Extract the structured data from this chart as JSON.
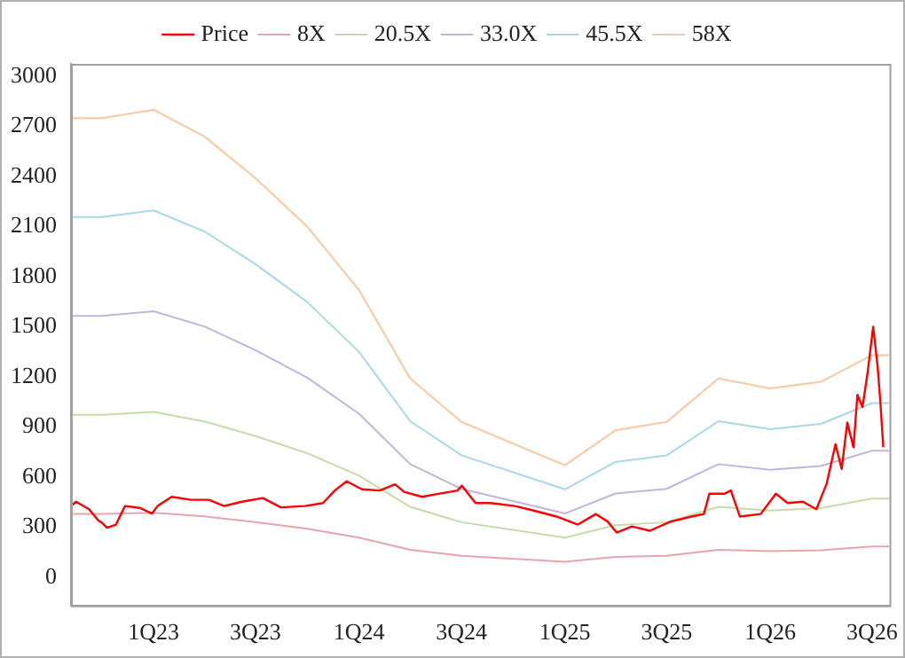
{
  "chart_data": {
    "type": "line",
    "legend": "top",
    "grid": false,
    "xlim": [
      "2022-08-07",
      "2026-08-01"
    ],
    "xticks": [
      {
        "value": "2023-01-01",
        "label": "1Q23"
      },
      {
        "value": "2023-07-01",
        "label": "3Q23"
      },
      {
        "value": "2024-01-01",
        "label": "1Q24"
      },
      {
        "value": "2024-07-01",
        "label": "3Q24"
      },
      {
        "value": "2025-01-01",
        "label": "1Q25"
      },
      {
        "value": "2025-07-01",
        "label": "3Q25"
      },
      {
        "value": "2026-01-01",
        "label": "1Q26"
      },
      {
        "value": "2026-07-01",
        "label": "3Q26"
      }
    ],
    "ylim": [
      -170,
      3075
    ],
    "yticks": [
      0,
      300,
      600,
      900,
      1200,
      1500,
      1800,
      2100,
      2400,
      2700,
      3000
    ],
    "series": [
      {
        "name": "Price",
        "color": "#ff0000",
        "x": [
          "2022-08-07",
          "2022-08-16",
          "2022-09-08",
          "2022-09-24",
          "2022-10-01",
          "2022-10-10",
          "2022-10-26",
          "2022-11-11",
          "2022-12-07",
          "2022-12-29",
          "2023-01-08",
          "2023-02-02",
          "2023-03-08",
          "2023-04-09",
          "2023-05-06",
          "2023-06-07",
          "2023-07-14",
          "2023-08-15",
          "2023-09-27",
          "2023-10-29",
          "2023-11-19",
          "2023-12-10",
          "2024-01-06",
          "2024-02-07",
          "2024-03-05",
          "2024-03-21",
          "2024-04-22",
          "2024-05-23",
          "2024-06-24",
          "2024-07-02",
          "2024-07-26",
          "2024-08-22",
          "2024-10-04",
          "2024-11-05",
          "2024-12-17",
          "2025-01-24",
          "2025-02-25",
          "2025-03-18",
          "2025-04-03",
          "2025-04-30",
          "2025-06-01",
          "2025-07-08",
          "2025-08-14",
          "2025-09-05",
          "2025-09-15",
          "2025-10-12",
          "2025-10-23",
          "2025-11-08",
          "2025-12-15",
          "2026-01-11",
          "2026-02-01",
          "2026-02-28",
          "2026-03-24",
          "2026-04-11",
          "2026-04-27",
          "2026-05-08",
          "2026-05-18",
          "2026-05-29",
          "2026-06-05",
          "2026-06-14",
          "2026-06-23",
          "2026-07-03",
          "2026-07-11",
          "2026-07-16",
          "2026-07-21"
        ],
        "values": [
          426,
          452,
          407,
          341,
          326,
          296,
          315,
          426,
          415,
          381,
          426,
          481,
          463,
          463,
          426,
          452,
          474,
          418,
          426,
          444,
          519,
          574,
          526,
          519,
          556,
          511,
          481,
          500,
          519,
          548,
          444,
          444,
          426,
          400,
          363,
          315,
          378,
          333,
          267,
          304,
          278,
          333,
          363,
          378,
          500,
          500,
          519,
          363,
          378,
          500,
          444,
          452,
          407,
          556,
          796,
          648,
          926,
          778,
          1092,
          1019,
          1222,
          1500,
          1259,
          1037,
          778
        ]
      },
      {
        "name": "8X",
        "color": "#e8a4ac",
        "x": [
          "2022-08-07",
          "2022-10-01",
          "2023-01-01",
          "2023-04-01",
          "2023-07-01",
          "2023-10-01",
          "2024-01-01",
          "2024-04-01",
          "2024-07-01",
          "2025-01-01",
          "2025-04-01",
          "2025-07-01",
          "2025-10-01",
          "2026-01-01",
          "2026-04-01",
          "2026-07-01",
          "2026-08-01"
        ],
        "values": [
          379,
          379,
          386,
          364,
          330,
          290,
          237,
          164,
          128,
          92,
          121,
          128,
          164,
          156,
          161,
          183,
          183
        ]
      },
      {
        "name": "20.5X",
        "color": "#c6dca8",
        "x": [
          "2022-08-07",
          "2022-10-01",
          "2023-01-01",
          "2023-04-01",
          "2023-07-01",
          "2023-10-01",
          "2024-01-01",
          "2024-04-01",
          "2024-07-01",
          "2025-01-01",
          "2025-04-01",
          "2025-07-01",
          "2025-10-01",
          "2026-01-01",
          "2026-04-01",
          "2026-07-01",
          "2026-08-01"
        ],
        "values": [
          972,
          972,
          990,
          933,
          845,
          742,
          608,
          421,
          329,
          237,
          311,
          329,
          421,
          399,
          413,
          470,
          470
        ]
      },
      {
        "name": "33.0X",
        "color": "#c2b4da",
        "x": [
          "2022-08-07",
          "2022-10-01",
          "2023-01-01",
          "2023-04-01",
          "2023-07-01",
          "2023-10-01",
          "2024-01-01",
          "2024-04-01",
          "2024-07-01",
          "2025-01-01",
          "2025-04-01",
          "2025-07-01",
          "2025-10-01",
          "2026-01-01",
          "2026-04-01",
          "2026-07-01",
          "2026-08-01"
        ],
        "values": [
          1565,
          1565,
          1593,
          1502,
          1360,
          1195,
          979,
          677,
          529,
          381,
          501,
          529,
          677,
          643,
          666,
          757,
          757
        ]
      },
      {
        "name": "45.5X",
        "color": "#a8d8e8",
        "x": [
          "2022-08-07",
          "2022-10-01",
          "2023-01-01",
          "2023-04-01",
          "2023-07-01",
          "2023-10-01",
          "2024-01-01",
          "2024-04-01",
          "2024-07-01",
          "2025-01-01",
          "2025-04-01",
          "2025-07-01",
          "2025-10-01",
          "2026-01-01",
          "2026-04-01",
          "2026-07-01",
          "2026-08-01"
        ],
        "values": [
          2157,
          2157,
          2197,
          2071,
          1875,
          1648,
          1349,
          934,
          730,
          526,
          690,
          730,
          934,
          886,
          918,
          1043,
          1043
        ]
      },
      {
        "name": "58X",
        "color": "#f8c8a0",
        "x": [
          "2022-08-07",
          "2022-10-01",
          "2023-01-01",
          "2023-04-01",
          "2023-07-01",
          "2023-10-01",
          "2024-01-01",
          "2024-04-01",
          "2024-07-01",
          "2025-01-01",
          "2025-04-01",
          "2025-07-01",
          "2025-10-01",
          "2026-01-01",
          "2026-04-01",
          "2026-07-01",
          "2026-08-01"
        ],
        "values": [
          2750,
          2750,
          2800,
          2640,
          2390,
          2100,
          1720,
          1190,
          930,
          670,
          880,
          930,
          1190,
          1130,
          1170,
          1330,
          1330
        ]
      }
    ]
  }
}
